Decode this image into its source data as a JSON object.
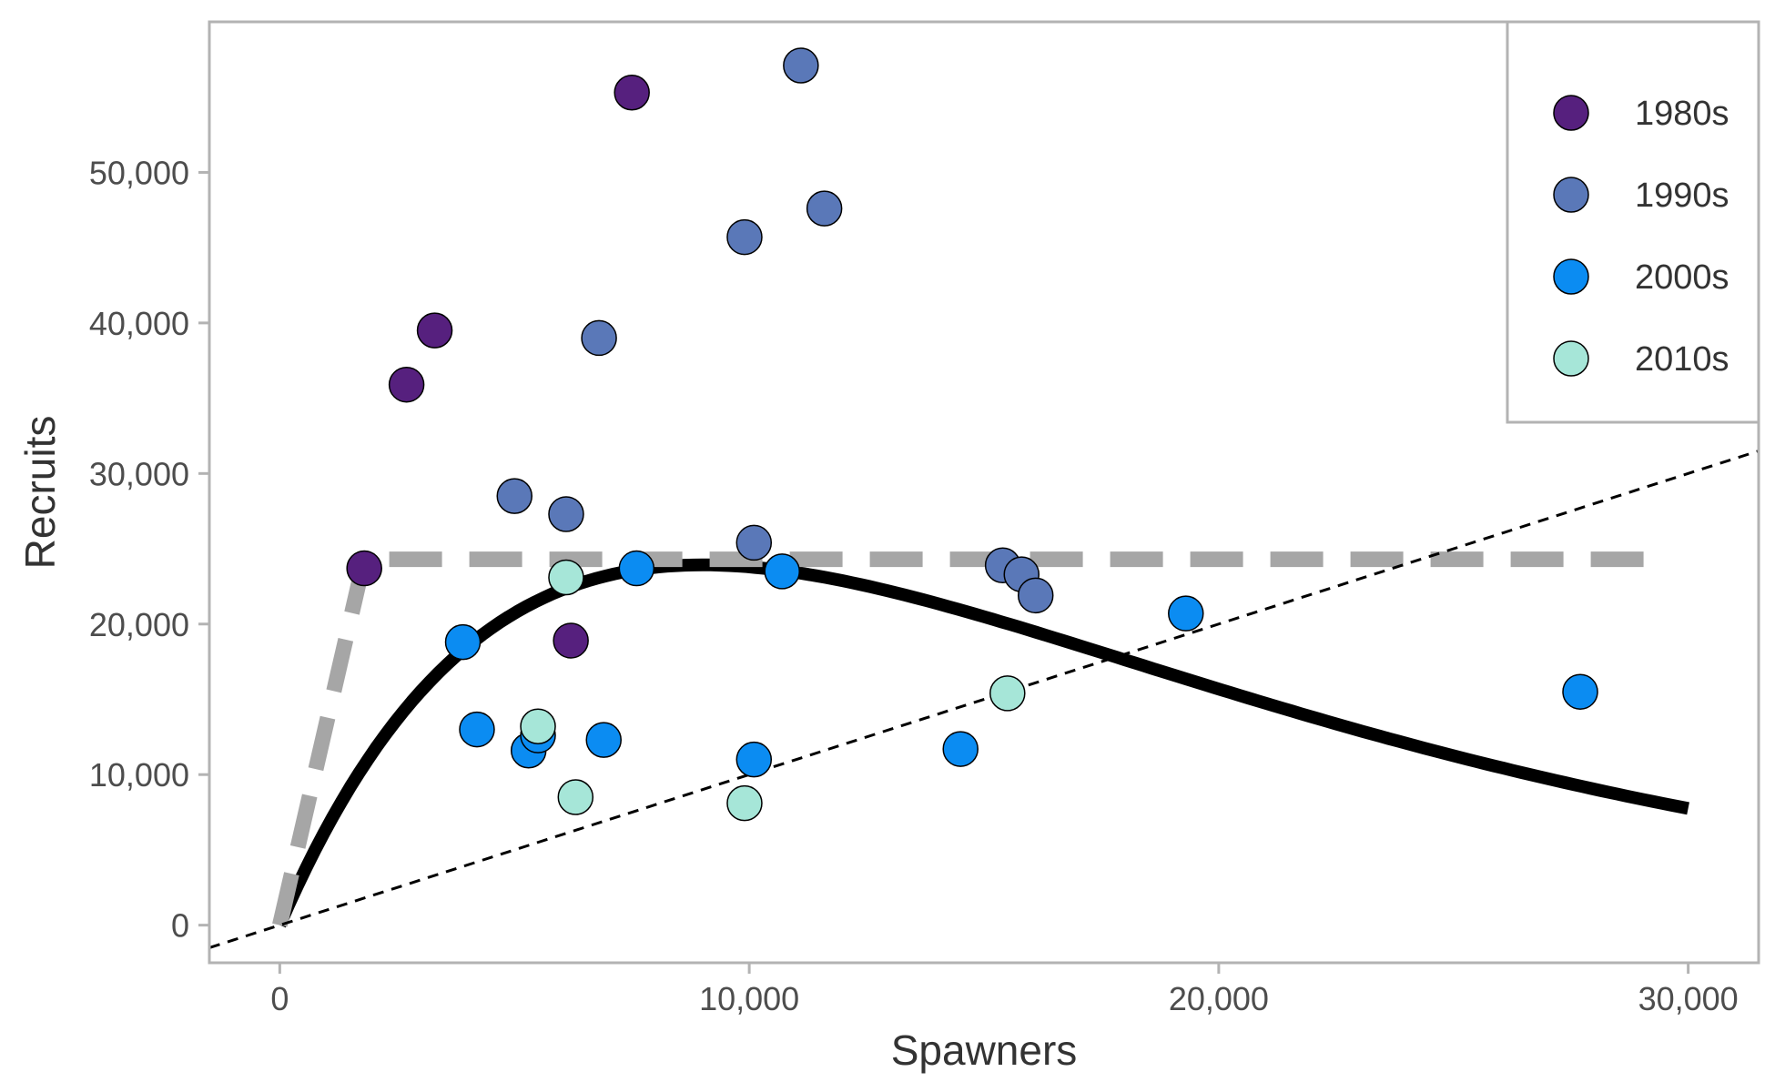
{
  "chart_data": {
    "type": "scatter",
    "title": "",
    "xlabel": "Spawners",
    "ylabel": "Recruits",
    "xlim": [
      -1500,
      31500
    ],
    "ylim": [
      -2500,
      60000
    ],
    "x_ticks": [
      0,
      10000,
      20000,
      30000
    ],
    "x_tick_labels": [
      "0",
      "10,000",
      "20,000",
      "30,000"
    ],
    "y_ticks": [
      0,
      10000,
      20000,
      30000,
      40000,
      50000
    ],
    "y_tick_labels": [
      "0",
      "10,000",
      "20,000",
      "30,000",
      "40,000",
      "50,000"
    ],
    "grid": false,
    "legend_position": "top-right",
    "series": [
      {
        "name": "1980s",
        "color": "#56207e",
        "points": [
          {
            "x": 1800,
            "y": 23700
          },
          {
            "x": 2700,
            "y": 35900
          },
          {
            "x": 3300,
            "y": 39500
          },
          {
            "x": 7500,
            "y": 55300
          },
          {
            "x": 6200,
            "y": 18900
          }
        ]
      },
      {
        "name": "1990s",
        "color": "#5a78b8",
        "points": [
          {
            "x": 11100,
            "y": 57100
          },
          {
            "x": 9900,
            "y": 45700
          },
          {
            "x": 11600,
            "y": 47600
          },
          {
            "x": 6800,
            "y": 39000
          },
          {
            "x": 5000,
            "y": 28500
          },
          {
            "x": 6100,
            "y": 27300
          },
          {
            "x": 10100,
            "y": 25400
          },
          {
            "x": 15400,
            "y": 23900
          },
          {
            "x": 15800,
            "y": 23300
          },
          {
            "x": 16100,
            "y": 21900
          }
        ]
      },
      {
        "name": "2000s",
        "color": "#0b8cf2",
        "points": [
          {
            "x": 3900,
            "y": 18800
          },
          {
            "x": 4200,
            "y": 13000
          },
          {
            "x": 5300,
            "y": 11600
          },
          {
            "x": 5500,
            "y": 12600
          },
          {
            "x": 6900,
            "y": 12300
          },
          {
            "x": 7600,
            "y": 23700
          },
          {
            "x": 10700,
            "y": 23500
          },
          {
            "x": 10100,
            "y": 11000
          },
          {
            "x": 14500,
            "y": 11700
          },
          {
            "x": 19300,
            "y": 20700
          },
          {
            "x": 27700,
            "y": 15500
          }
        ]
      },
      {
        "name": "2010s",
        "color": "#a6e6d8",
        "points": [
          {
            "x": 6100,
            "y": 23100
          },
          {
            "x": 5500,
            "y": 13200
          },
          {
            "x": 6300,
            "y": 8500
          },
          {
            "x": 9900,
            "y": 8100
          },
          {
            "x": 15500,
            "y": 15400
          }
        ]
      }
    ],
    "lines": [
      {
        "kind": "ricker-curve",
        "style": "solid-thick",
        "color": "#000000",
        "alpha": 7.22,
        "beta": 0.000111,
        "x_range": [
          0,
          30000
        ]
      },
      {
        "kind": "hockey-stick",
        "style": "long-dash",
        "color": "#a6a6a6",
        "points": [
          [
            0,
            0
          ],
          [
            1800,
            24300
          ],
          [
            29200,
            24300
          ]
        ]
      },
      {
        "kind": "replacement-line",
        "style": "short-dash",
        "color": "#000000",
        "slope": 1,
        "x_range": [
          -1500,
          31500
        ]
      }
    ]
  }
}
